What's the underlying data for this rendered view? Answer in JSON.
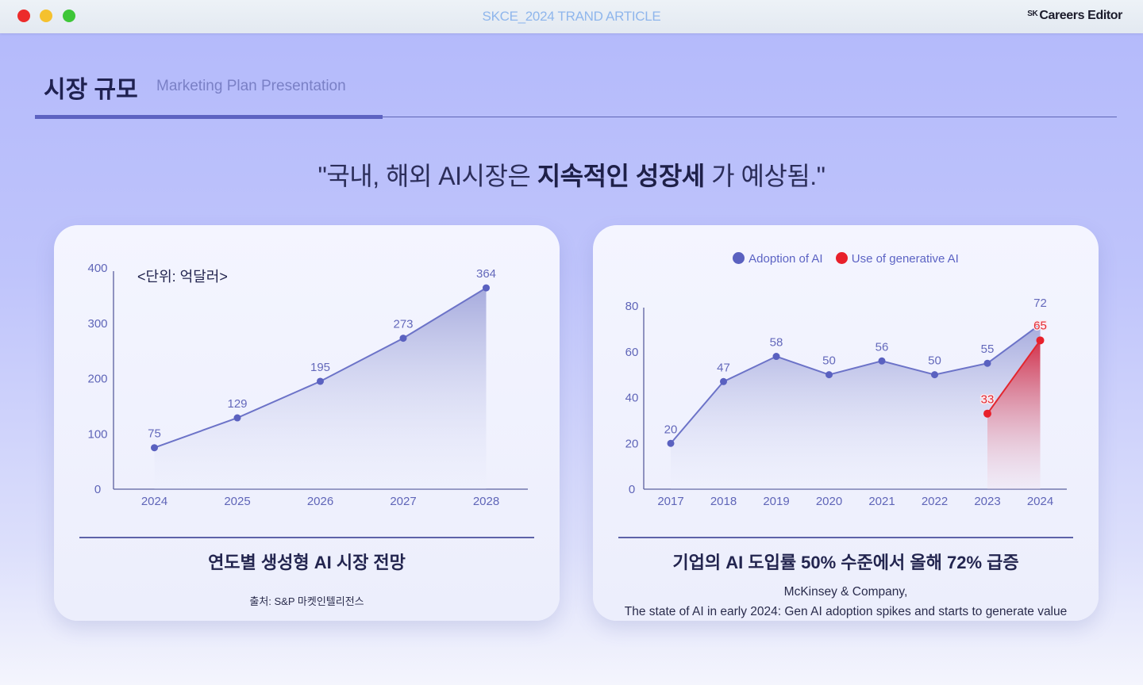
{
  "window": {
    "title": "SKCE_2024 TRAND ARTICLE",
    "brand_prefix": "SK",
    "brand": "Careers Editor"
  },
  "header": {
    "title": "시장 규모",
    "subtitle": "Marketing Plan Presentation"
  },
  "headline": {
    "before": "\"국내, 해외 AI시장은 ",
    "bold": "지속적인 성장세",
    "after": "  가 예상됨.\""
  },
  "colors": {
    "accent": "#5d63c1",
    "line_blue": "#6c73c8",
    "point_blue": "#5a61c0",
    "line_red": "#e3262e",
    "point_red": "#e8202b"
  },
  "cards": {
    "left": {
      "unit_note": "<단위: 억달러>",
      "title": "연도별 생성형 AI 시장 전망",
      "source": "출처: S&P 마켓인텔리전스"
    },
    "right": {
      "title": "기업의 AI 도입률 50% 수준에서 올해 72% 급증",
      "source_line1": "McKinsey & Company,",
      "source_line2": "The state of AI in early 2024: Gen AI adoption spikes and starts to generate value"
    }
  },
  "chart_data": [
    {
      "type": "area",
      "title": "연도별 생성형 AI 시장 전망",
      "unit": "<단위: 억달러>",
      "x": [
        "2024",
        "2025",
        "2026",
        "2027",
        "2028"
      ],
      "y_ticks": [
        0,
        100,
        200,
        300,
        400
      ],
      "ylim": [
        0,
        400
      ],
      "series": [
        {
          "values": [
            75,
            129,
            195,
            273,
            364
          ]
        }
      ]
    },
    {
      "type": "line",
      "title": "기업의 AI 도입률 50% 수준에서 올해 72% 급증",
      "legend_position": "top-center",
      "x": [
        "2017",
        "2018",
        "2019",
        "2020",
        "2021",
        "2022",
        "2023",
        "2024"
      ],
      "y_ticks": [
        0,
        20,
        40,
        60,
        80
      ],
      "ylim": [
        0,
        80
      ],
      "series": [
        {
          "name": "Adoption of AI",
          "color": "#5a61c0",
          "values": [
            20,
            47,
            58,
            50,
            56,
            50,
            55,
            72
          ]
        },
        {
          "name": "Use of generative AI",
          "color": "#e8202b",
          "x": [
            "2023",
            "2024"
          ],
          "values": [
            33,
            65
          ]
        }
      ]
    }
  ]
}
